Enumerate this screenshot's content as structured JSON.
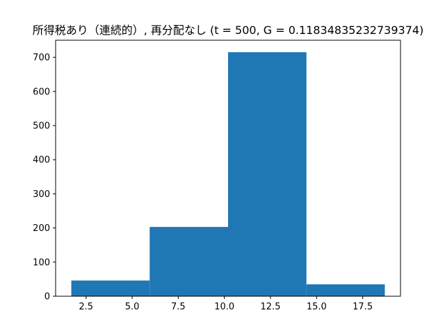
{
  "chart_data": {
    "type": "bar",
    "title": "所得税あり（連続的）, 再分配なし (t = 500, G = 0.11834835232739374)",
    "xlabel": "",
    "ylabel": "",
    "bins": [
      {
        "x0": 1.7,
        "x1": 5.95,
        "value": 46
      },
      {
        "x0": 5.95,
        "x1": 10.2,
        "value": 203
      },
      {
        "x0": 10.2,
        "x1": 14.45,
        "value": 715
      },
      {
        "x0": 14.45,
        "x1": 18.7,
        "value": 35
      }
    ],
    "xlim": [
      0.85,
      19.55
    ],
    "ylim": [
      0,
      750
    ],
    "xticks": [
      2.5,
      5.0,
      7.5,
      10.0,
      12.5,
      15.0,
      17.5
    ],
    "xtick_labels": [
      "2.5",
      "5.0",
      "7.5",
      "10.0",
      "12.5",
      "15.0",
      "17.5"
    ],
    "yticks": [
      0,
      100,
      200,
      300,
      400,
      500,
      600,
      700
    ],
    "ytick_labels": [
      "0",
      "100",
      "200",
      "300",
      "400",
      "500",
      "600",
      "700"
    ],
    "bar_color": "#1f77b4",
    "grid": false,
    "legend": "none"
  }
}
